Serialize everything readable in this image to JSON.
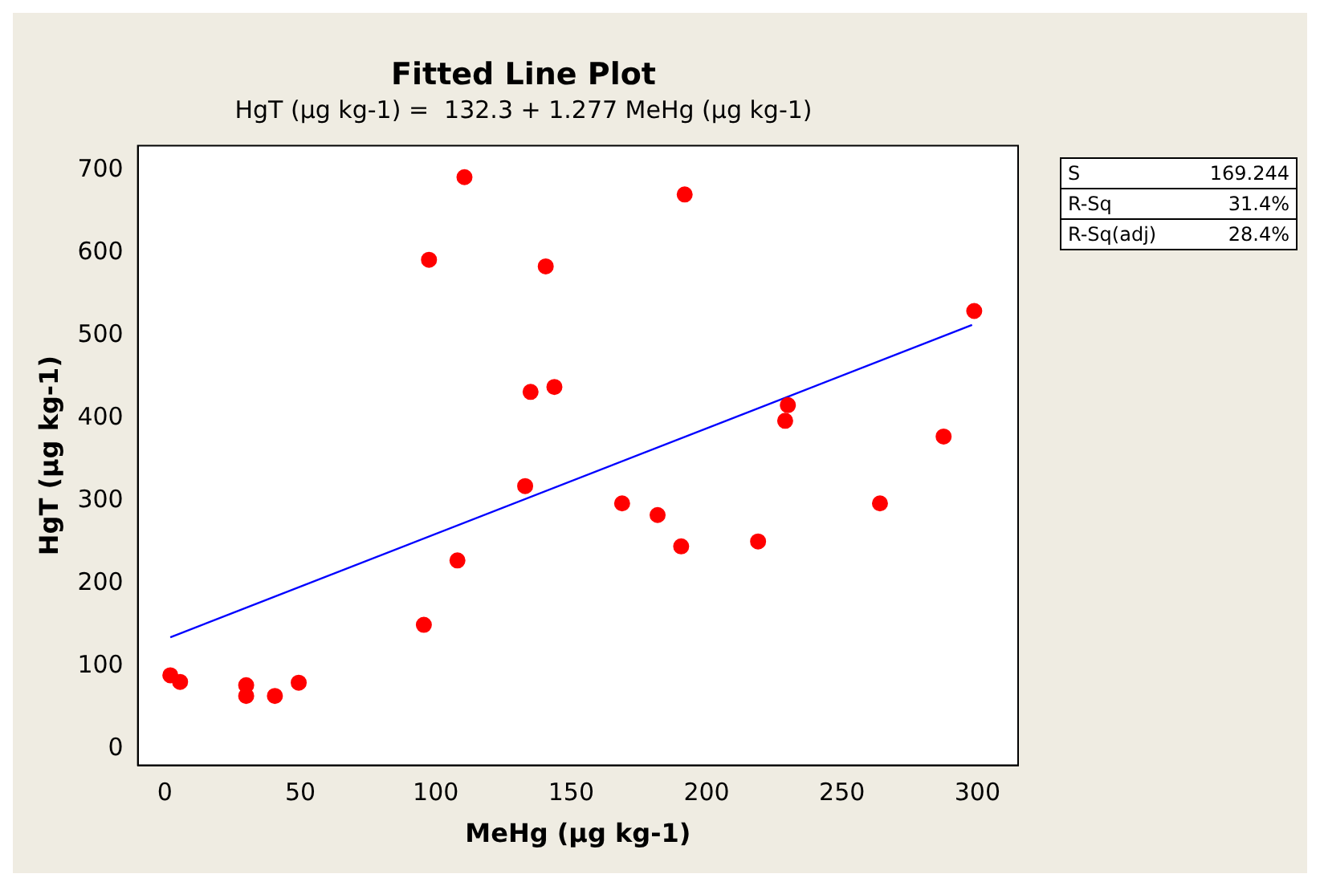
{
  "chart_data": {
    "type": "scatter",
    "title": "Fitted Line Plot",
    "subtitle": "HgT (µg kg-1) =  132.3 + 1.277 MeHg (µg kg-1)",
    "xlabel": "MeHg (µg kg-1)",
    "ylabel": "HgT (µg kg-1)",
    "annotations": [
      "S 169.244",
      "R-Sq 31.4%",
      "R-Sq(adj) 28.4%"
    ],
    "series": [
      {
        "type": "scatter",
        "color": "#ff0000",
        "marker": "circle",
        "x": [
          2,
          5.6,
          30,
          30,
          40.6,
          49.4,
          95.6,
          97.5,
          108,
          110.6,
          133,
          135,
          140.6,
          143.8,
          168.8,
          181.9,
          190.6,
          191.9,
          219,
          229,
          230,
          264,
          287.5,
          298.8
        ],
        "values": [
          89,
          81,
          77,
          64,
          64,
          80,
          150,
          592,
          228,
          692,
          318,
          432,
          584,
          438,
          297,
          283,
          245,
          671,
          251,
          397,
          416,
          297,
          378,
          530
        ]
      },
      {
        "type": "line",
        "color": "#0000ff",
        "marker": "none",
        "line_style": "solid",
        "x": [
          2,
          298
        ],
        "values": [
          135,
          513
        ]
      }
    ],
    "xlim": [
      -10,
      315
    ],
    "xticks": [
      0,
      50,
      100,
      150,
      200,
      250,
      300
    ],
    "ylim": [
      -20,
      730
    ],
    "yticks": [
      0,
      100,
      200,
      300,
      400,
      500,
      600,
      700
    ],
    "grid": false,
    "legend": false
  }
}
